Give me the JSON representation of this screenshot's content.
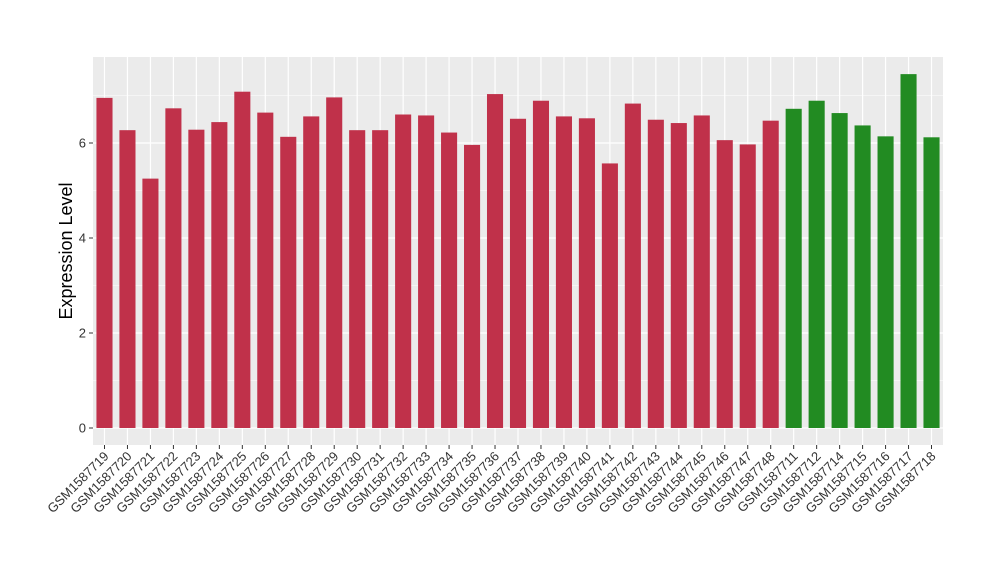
{
  "chart_data": {
    "type": "bar",
    "ylabel": "Expression Level",
    "xlabel": "",
    "title": "",
    "ylim": [
      0,
      7.65
    ],
    "yticks": [
      0,
      2,
      4,
      6
    ],
    "grid": true,
    "legend": "none",
    "colors": {
      "group_a": "#C0314A",
      "group_b": "#228B22",
      "panel_bg": "#EBEBEB",
      "grid": "#FFFFFF",
      "axis_text": "#333333"
    },
    "categories": [
      "GSM1587719",
      "GSM1587720",
      "GSM1587721",
      "GSM1587722",
      "GSM1587723",
      "GSM1587724",
      "GSM1587725",
      "GSM1587726",
      "GSM1587727",
      "GSM1587728",
      "GSM1587729",
      "GSM1587730",
      "GSM1587731",
      "GSM1587732",
      "GSM1587733",
      "GSM1587734",
      "GSM1587735",
      "GSM1587736",
      "GSM1587737",
      "GSM1587738",
      "GSM1587739",
      "GSM1587740",
      "GSM1587741",
      "GSM1587742",
      "GSM1587743",
      "GSM1587744",
      "GSM1587745",
      "GSM1587746",
      "GSM1587747",
      "GSM1587748",
      "GSM1587711",
      "GSM1587712",
      "GSM1587714",
      "GSM1587715",
      "GSM1587716",
      "GSM1587717",
      "GSM1587718"
    ],
    "values": [
      6.95,
      6.27,
      5.25,
      6.73,
      6.28,
      6.44,
      7.08,
      6.64,
      6.13,
      6.56,
      6.96,
      6.27,
      6.27,
      6.6,
      6.58,
      6.22,
      5.96,
      7.03,
      6.51,
      6.89,
      6.56,
      6.52,
      5.57,
      6.83,
      6.49,
      6.42,
      6.58,
      6.06,
      5.97,
      6.47,
      6.72,
      6.89,
      6.63,
      6.37,
      6.14,
      7.45,
      6.12
    ],
    "groups": [
      "a",
      "a",
      "a",
      "a",
      "a",
      "a",
      "a",
      "a",
      "a",
      "a",
      "a",
      "a",
      "a",
      "a",
      "a",
      "a",
      "a",
      "a",
      "a",
      "a",
      "a",
      "a",
      "a",
      "a",
      "a",
      "a",
      "a",
      "a",
      "a",
      "a",
      "b",
      "b",
      "b",
      "b",
      "b",
      "b",
      "b"
    ]
  }
}
